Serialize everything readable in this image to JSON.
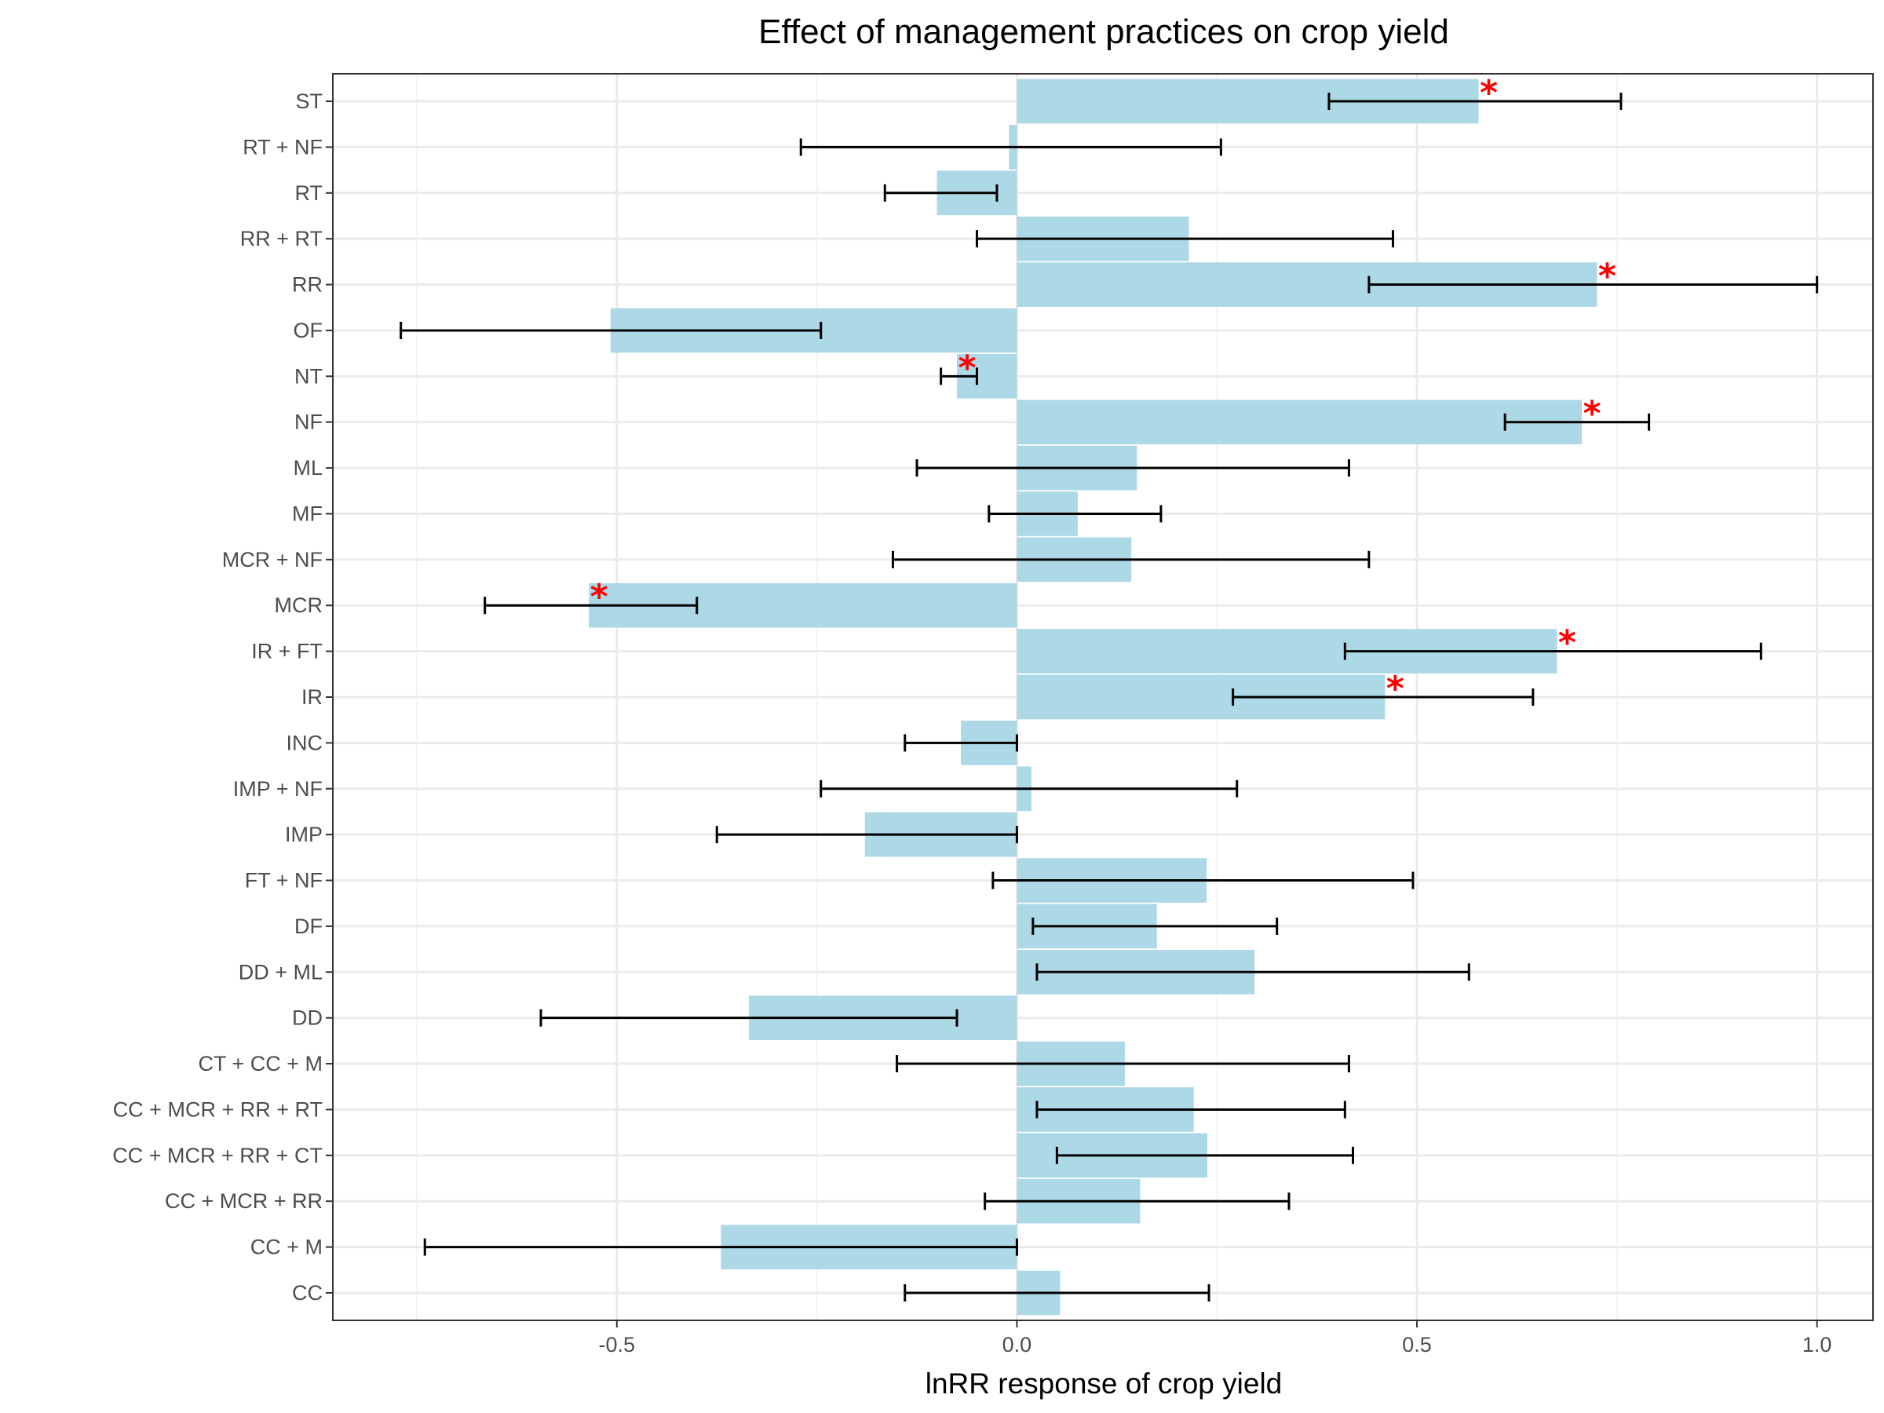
{
  "chart_data": {
    "type": "bar",
    "orientation": "horizontal",
    "title": "Effect of management practices on crop yield",
    "xlabel": "lnRR response of crop yield",
    "ylabel": "",
    "xlim": [
      -0.855,
      1.07
    ],
    "xticks": [
      -0.5,
      0.0,
      0.5,
      1.0
    ],
    "xtick_labels": [
      "-0.5",
      "0.0",
      "0.5",
      "1.0"
    ],
    "grid": true,
    "bar_color": "#add8e6",
    "errorbar_color": "#000000",
    "significance_color": "#ff0000",
    "significance_marker": "*",
    "categories": [
      "CC",
      "CC + M",
      "CC + MCR + RR",
      "CC + MCR + RR + CT",
      "CC + MCR + RR + RT",
      "CT + CC + M",
      "DD",
      "DD + ML",
      "DF",
      "FT + NF",
      "IMP",
      "IMP + NF",
      "INC",
      "IR",
      "IR + FT",
      "MCR",
      "MCR + NF",
      "MF",
      "ML",
      "NF",
      "NT",
      "OF",
      "RR",
      "RR + RT",
      "RT",
      "RT + NF",
      "ST"
    ],
    "values": [
      0.054,
      -0.37,
      0.154,
      0.238,
      0.221,
      0.135,
      -0.335,
      0.297,
      0.175,
      0.237,
      -0.19,
      0.018,
      -0.07,
      0.46,
      0.675,
      -0.535,
      0.143,
      0.076,
      0.15,
      0.706,
      -0.075,
      -0.508,
      0.725,
      0.215,
      -0.1,
      -0.01,
      0.577
    ],
    "ci_lower": [
      -0.14,
      -0.74,
      -0.04,
      0.05,
      0.025,
      -0.15,
      -0.595,
      0.025,
      0.02,
      -0.03,
      -0.375,
      -0.245,
      -0.14,
      0.27,
      0.41,
      -0.665,
      -0.155,
      -0.035,
      -0.125,
      0.61,
      -0.095,
      -0.77,
      0.44,
      -0.05,
      -0.165,
      -0.27,
      0.39
    ],
    "ci_upper": [
      0.24,
      0.0,
      0.34,
      0.42,
      0.41,
      0.415,
      -0.075,
      0.565,
      0.325,
      0.495,
      0.0,
      0.275,
      0.0,
      0.645,
      0.93,
      -0.4,
      0.44,
      0.18,
      0.415,
      0.79,
      -0.05,
      -0.245,
      1.0,
      0.47,
      -0.025,
      0.255,
      0.755
    ],
    "significant": [
      false,
      false,
      false,
      false,
      false,
      false,
      false,
      false,
      false,
      false,
      false,
      false,
      false,
      true,
      true,
      true,
      false,
      false,
      false,
      true,
      true,
      false,
      true,
      false,
      false,
      false,
      true
    ]
  }
}
